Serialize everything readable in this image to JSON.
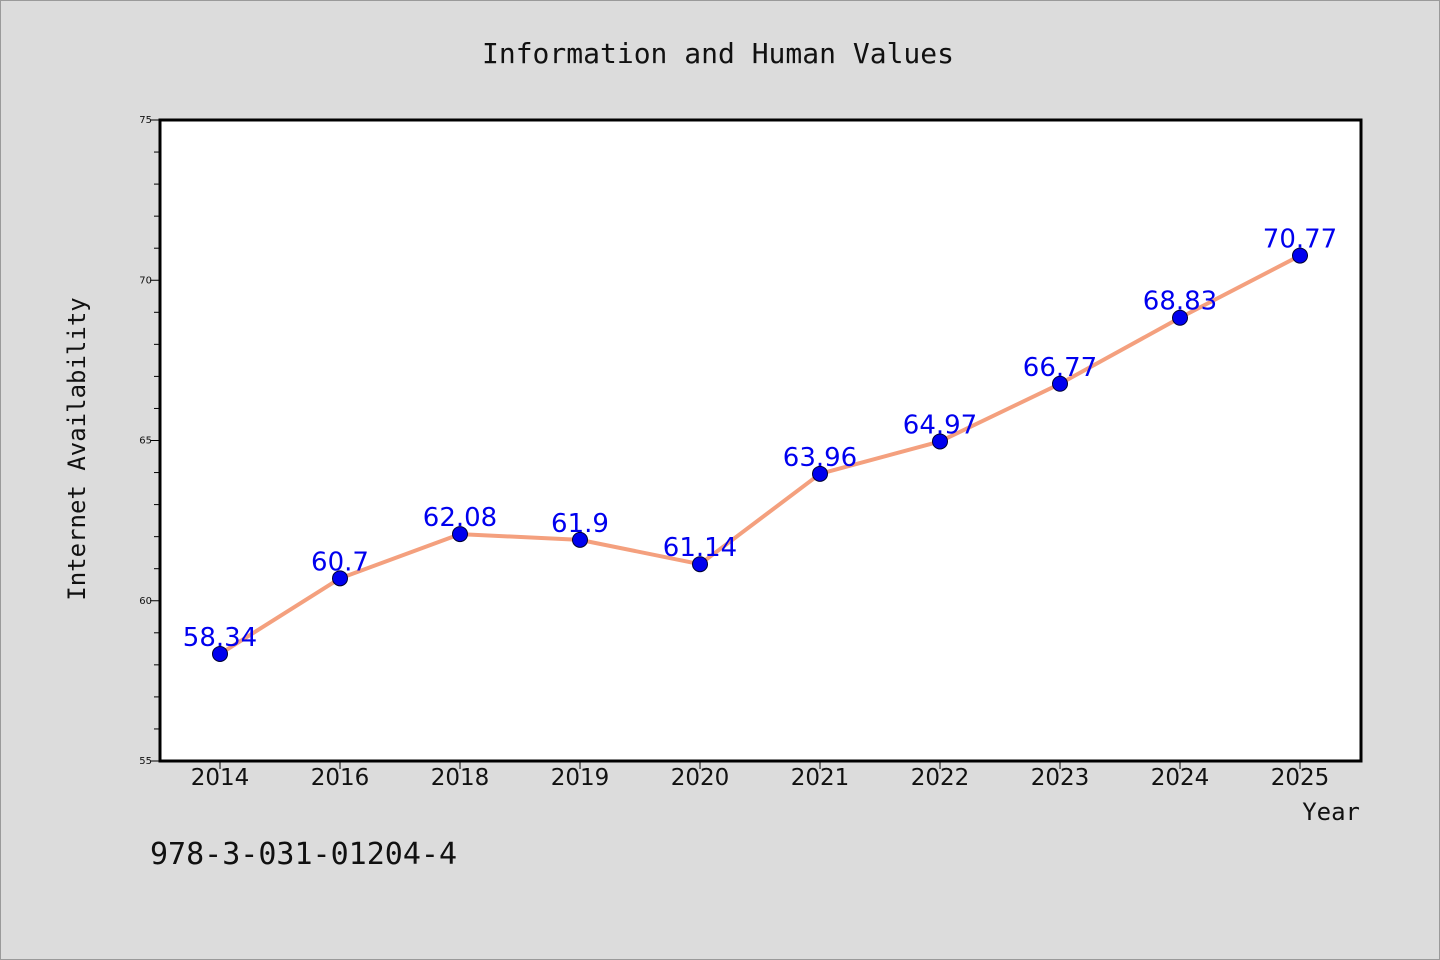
{
  "chart_data": {
    "type": "line",
    "title": "Information and Human Values",
    "xlabel": "Year",
    "ylabel": "Internet Availability",
    "categories": [
      "2014",
      "2016",
      "2018",
      "2019",
      "2020",
      "2021",
      "2022",
      "2023",
      "2024",
      "2025"
    ],
    "series": [
      {
        "values": [
          58.34,
          60.7,
          62.08,
          61.9,
          61.14,
          63.96,
          64.97,
          66.77,
          68.83,
          70.77
        ],
        "labels": [
          "58.34",
          "60.7",
          "62.08",
          "61.9",
          "61.14",
          "63.96",
          "64.97",
          "66.77",
          "68.83",
          "70.77"
        ],
        "line_color": "#f4a07e",
        "marker_color": "#0000ee",
        "label_color": "#0000ee"
      }
    ],
    "ylim": [
      55,
      75
    ],
    "yticks": [
      "55",
      "60",
      "65",
      "70",
      "75"
    ],
    "grid": false,
    "legend": "none"
  },
  "footer": {
    "isbn": "978-3-031-01204-4"
  }
}
